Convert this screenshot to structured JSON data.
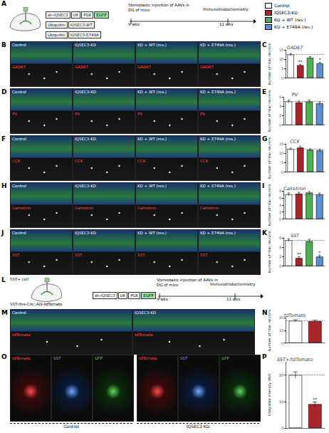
{
  "figure": {
    "A": {
      "letter": "A",
      "constructs": [
        [
          "sh-IQSEC3",
          "U6",
          "PGK",
          "EGFP"
        ],
        [
          "Ubiquitin",
          "IQSEC3-WT"
        ],
        [
          "Ubiquitin",
          "IQSEC3-E749A"
        ]
      ],
      "steps": [
        "Stereotaxic injection of AAVs in DG of mice",
        "Immunohistochemistry"
      ],
      "times": [
        "9 wks",
        "11 wks"
      ]
    },
    "image_rows": [
      {
        "letter": "B",
        "conditions": [
          "Control",
          "IQSEC3-KD",
          "KD + WT (res.)",
          "KD + E749A (res.)"
        ],
        "marker": "GAD67"
      },
      {
        "letter": "D",
        "conditions": [
          "Control",
          "IQSEC3-KD",
          "KD + WT (res.)",
          "KD + E749A (res.)"
        ],
        "marker": "PV"
      },
      {
        "letter": "F",
        "conditions": [
          "Control",
          "IQSEC3-KD",
          "KD + WT (res.)",
          "KD + E749A (res.)"
        ],
        "marker": "CCK"
      },
      {
        "letter": "H",
        "conditions": [
          "Control",
          "IQSEC3-KD",
          "KD + WT (res.)",
          "KD + E749A (res.)"
        ],
        "marker": "Calretinin"
      },
      {
        "letter": "J",
        "conditions": [
          "Control",
          "IQSEC3-KD",
          "KD + WT (res.)",
          "KD + E749A (res.)"
        ],
        "marker": "SST"
      },
      {
        "letter": "M",
        "conditions": [
          "Control",
          "IQSEC3-KD"
        ],
        "marker": "tdTomato"
      }
    ],
    "L": {
      "letter": "L",
      "cell": "SST+ cell",
      "genotype": "SST-Ires-Cre::Ai9-tdTomato",
      "construct": [
        "sh-IQSEC3",
        "U6",
        "PGK",
        "EGFP"
      ],
      "steps": [
        "Stereotaxic injection of AAVs in DG of mice",
        "Immunohistochemistry"
      ],
      "times": [
        "9 wks",
        "11 wks"
      ]
    },
    "O": {
      "letter": "O",
      "groups": [
        "Control",
        "IQSEC3 KD"
      ],
      "channels": [
        "tdTomato",
        "SST",
        "GFP"
      ]
    }
  },
  "chart_data": [
    {
      "type": "bar",
      "letter": "C",
      "title": "GAD67",
      "ylabel": "Number of hilar neurons",
      "categories": [
        "Control",
        "IQSEC3-KD",
        "KD + WT (res.)",
        "KD + E749A (res.)"
      ],
      "colors": [
        "#ffffff",
        "#a8262a",
        "#4caf50",
        "#5b8fd0"
      ],
      "values": [
        12.5,
        6.8,
        10.8,
        7.8
      ],
      "errors": [
        0.6,
        0.5,
        0.6,
        0.5
      ],
      "annotations": [
        null,
        "**",
        null,
        "*"
      ],
      "ylim": [
        0,
        15
      ],
      "yticks": [
        0,
        5,
        10,
        15
      ],
      "tick_labels": "y"
    },
    {
      "type": "bar",
      "letter": "E",
      "title": "PV",
      "ylabel": "Number of hilar neurons",
      "categories": [
        "Control",
        "IQSEC3-KD",
        "KD + WT (res.)",
        "KD + E749A (res.)"
      ],
      "colors": [
        "#ffffff",
        "#a8262a",
        "#4caf50",
        "#5b8fd0"
      ],
      "values": [
        5.0,
        4.8,
        5.0,
        4.6
      ],
      "errors": [
        0.3,
        0.3,
        0.3,
        0.3
      ],
      "annotations": [
        null,
        null,
        null,
        null
      ],
      "ylim": [
        0,
        6
      ],
      "yticks": [
        0,
        2,
        4,
        6
      ],
      "tick_labels": "y"
    },
    {
      "type": "bar",
      "letter": "G",
      "title": "CCK",
      "ylabel": "Number of hilar neurons",
      "categories": [
        "Control",
        "IQSEC3-KD",
        "KD + WT (res.)",
        "KD + E749A (res.)"
      ],
      "colors": [
        "#ffffff",
        "#a8262a",
        "#4caf50",
        "#5b8fd0"
      ],
      "values": [
        12.2,
        13.0,
        11.8,
        11.5
      ],
      "errors": [
        0.6,
        0.8,
        0.6,
        0.6
      ],
      "annotations": [
        null,
        null,
        null,
        null
      ],
      "ylim": [
        0,
        15
      ],
      "yticks": [
        0,
        5,
        10,
        15
      ],
      "tick_labels": "y"
    },
    {
      "type": "bar",
      "letter": "I",
      "title": "Calretinin",
      "ylabel": "Number of hilar neurons",
      "categories": [
        "Control",
        "IQSEC3-KD",
        "KD + WT (res.)",
        "KD + E749A (res.)"
      ],
      "colors": [
        "#ffffff",
        "#a8262a",
        "#4caf50",
        "#5b8fd0"
      ],
      "values": [
        7.0,
        7.2,
        7.5,
        7.0
      ],
      "errors": [
        0.4,
        0.4,
        0.5,
        0.4
      ],
      "annotations": [
        null,
        null,
        null,
        null
      ],
      "ylim": [
        0,
        8
      ],
      "yticks": [
        0,
        2,
        4,
        6,
        8
      ],
      "tick_labels": "y"
    },
    {
      "type": "bar",
      "letter": "K",
      "title": "SST",
      "ylabel": "Number of hilar neurons",
      "categories": [
        "Control",
        "IQSEC3-KD",
        "KD + WT (res.)",
        "KD + E749A (res.)"
      ],
      "colors": [
        "#ffffff",
        "#a8262a",
        "#4caf50",
        "#5b8fd0"
      ],
      "values": [
        5.5,
        1.7,
        5.3,
        2.0
      ],
      "errors": [
        0.3,
        0.3,
        0.4,
        0.3
      ],
      "annotations": [
        null,
        "**",
        null,
        "*"
      ],
      "ylim": [
        0,
        6
      ],
      "yticks": [
        0,
        2,
        4,
        6
      ],
      "tick_labels": "y"
    },
    {
      "type": "bar",
      "letter": "N",
      "title": "tdTomato",
      "ylabel": "Number of hilar neurons",
      "categories": [
        "Control",
        "IQSEC3-KD"
      ],
      "colors": [
        "#ffffff",
        "#a8262a"
      ],
      "values": [
        17.5,
        17.2
      ],
      "errors": [
        0.8,
        0.9
      ],
      "annotations": [
        null,
        null
      ],
      "ylim": [
        0,
        20
      ],
      "yticks": [
        0,
        10,
        20
      ],
      "tick_labels": "y"
    },
    {
      "type": "bar",
      "letter": "P",
      "title": "SST+/tdTomato",
      "ylabel": "Integrated intensity (AU)",
      "categories": [
        "Control",
        "IQSEC3-KD"
      ],
      "colors": [
        "#ffffff",
        "#a8262a"
      ],
      "values": [
        20.0,
        9.0
      ],
      "errors": [
        1.2,
        0.8
      ],
      "annotations": [
        null,
        "**"
      ],
      "ylim": [
        0,
        25
      ],
      "yticks": [
        0,
        10,
        20
      ],
      "tick_labels": "y"
    }
  ]
}
